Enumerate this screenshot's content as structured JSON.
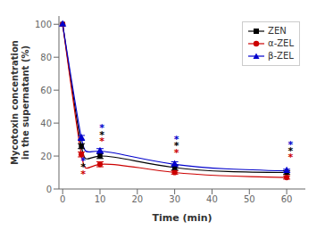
{
  "chart_data": {
    "type": "line",
    "xlabel": "Time (min)",
    "ylabel": "Mycotoxin concentration\nin the supernatant (%)",
    "x": [
      0,
      5,
      10,
      30,
      60
    ],
    "series": [
      {
        "name": "ZEN",
        "color": "#000000",
        "marker": "square",
        "line_style": "solid",
        "values": [
          100,
          26,
          20,
          13,
          10
        ],
        "errors": [
          0,
          1.5,
          1.5,
          1.5,
          1.0
        ]
      },
      {
        "name": "α-ZEL",
        "color": "#cc0000",
        "marker": "circle",
        "line_style": "solid",
        "values": [
          100,
          21,
          15,
          10,
          7
        ],
        "errors": [
          0,
          1.5,
          1.5,
          1.0,
          1.0
        ]
      },
      {
        "name": "β-ZEL",
        "color": "#0000cc",
        "marker": "triangle",
        "line_style": "solid",
        "values": [
          100,
          31,
          23,
          15,
          11
        ],
        "errors": [
          0,
          1.5,
          1.5,
          1.5,
          1.0
        ]
      }
    ],
    "annotations": [
      {
        "text": "*",
        "x": 5.5,
        "y": 17,
        "color": "#0000cc"
      },
      {
        "text": "*",
        "x": 5.5,
        "y": 13,
        "color": "#000000"
      },
      {
        "text": "*",
        "x": 5.5,
        "y": 9,
        "color": "#cc0000"
      },
      {
        "text": "*",
        "x": 10.5,
        "y": 37,
        "color": "#0000cc"
      },
      {
        "text": "*",
        "x": 10.5,
        "y": 33,
        "color": "#000000"
      },
      {
        "text": "*",
        "x": 10.5,
        "y": 29,
        "color": "#cc0000"
      },
      {
        "text": "*",
        "x": 30.5,
        "y": 30,
        "color": "#0000cc"
      },
      {
        "text": "*",
        "x": 30.5,
        "y": 26,
        "color": "#000000"
      },
      {
        "text": "*",
        "x": 30.5,
        "y": 22,
        "color": "#cc0000"
      },
      {
        "text": "*",
        "x": 61,
        "y": 27,
        "color": "#0000cc"
      },
      {
        "text": "*",
        "x": 61,
        "y": 23,
        "color": "#000000"
      },
      {
        "text": "*",
        "x": 61,
        "y": 19,
        "color": "#cc0000"
      }
    ],
    "xlim": [
      -1,
      65
    ],
    "xticks": [
      0,
      10,
      20,
      30,
      40,
      50,
      60
    ],
    "ylim": [
      0,
      105
    ],
    "yticks": [
      0,
      20,
      40,
      60,
      80,
      100
    ],
    "grid": false,
    "legend": "upper right"
  }
}
